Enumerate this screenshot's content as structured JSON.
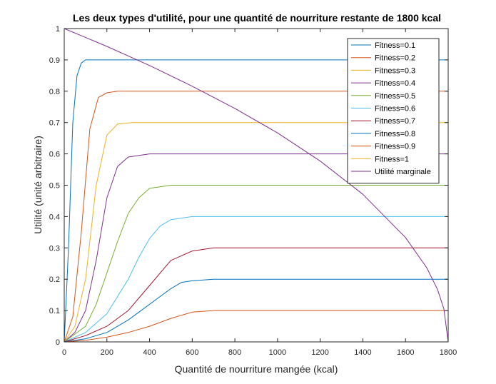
{
  "chart_data": {
    "type": "line",
    "title": "Les deux types d'utilité, pour une quantité de nourriture restante de 1800 kcal",
    "xlabel": "Quantité de nourriture mangée (kcal)",
    "ylabel": "Utilité (unité arbitraire)",
    "xlim": [
      0,
      1800
    ],
    "ylim": [
      0,
      1
    ],
    "xticks": [
      0,
      200,
      400,
      600,
      800,
      1000,
      1200,
      1400,
      1600,
      1800
    ],
    "yticks": [
      0,
      0.1,
      0.2,
      0.3,
      0.4,
      0.5,
      0.6,
      0.7,
      0.8,
      0.9,
      1
    ],
    "grid": false,
    "legend_position": "top-right",
    "series": [
      {
        "name": "Fitness=0.1",
        "color": "#0072bd",
        "plateau": 0.9,
        "x": [
          0,
          20,
          40,
          60,
          80,
          100,
          130,
          1800
        ],
        "y": [
          0,
          0.3,
          0.7,
          0.85,
          0.89,
          0.9,
          0.9,
          0.9
        ]
      },
      {
        "name": "Fitness=0.2",
        "color": "#d95319",
        "plateau": 0.8,
        "x": [
          0,
          40,
          80,
          120,
          160,
          200,
          250,
          1800
        ],
        "y": [
          0,
          0.08,
          0.35,
          0.68,
          0.78,
          0.795,
          0.8,
          0.8
        ]
      },
      {
        "name": "Fitness=0.3",
        "color": "#edb120",
        "plateau": 0.7,
        "x": [
          0,
          50,
          100,
          150,
          200,
          250,
          320,
          1800
        ],
        "y": [
          0,
          0.05,
          0.2,
          0.5,
          0.66,
          0.695,
          0.7,
          0.7
        ]
      },
      {
        "name": "Fitness=0.4",
        "color": "#7e2f8e",
        "plateau": 0.6,
        "x": [
          0,
          50,
          100,
          150,
          200,
          250,
          300,
          400,
          1800
        ],
        "y": [
          0,
          0.03,
          0.1,
          0.26,
          0.46,
          0.56,
          0.59,
          0.6,
          0.6
        ]
      },
      {
        "name": "Fitness=0.5",
        "color": "#77ac30",
        "plateau": 0.5,
        "x": [
          0,
          100,
          150,
          200,
          250,
          300,
          350,
          400,
          500,
          1800
        ],
        "y": [
          0,
          0.05,
          0.12,
          0.22,
          0.32,
          0.41,
          0.46,
          0.49,
          0.5,
          0.5
        ]
      },
      {
        "name": "Fitness=0.6",
        "color": "#4dbeee",
        "plateau": 0.4,
        "x": [
          0,
          100,
          200,
          300,
          350,
          400,
          450,
          500,
          600,
          1800
        ],
        "y": [
          0,
          0.03,
          0.09,
          0.2,
          0.27,
          0.33,
          0.37,
          0.39,
          0.4,
          0.4
        ]
      },
      {
        "name": "Fitness=0.7",
        "color": "#a2142f",
        "plateau": 0.3,
        "x": [
          0,
          100,
          200,
          300,
          400,
          450,
          500,
          600,
          700,
          1800
        ],
        "y": [
          0,
          0.02,
          0.05,
          0.1,
          0.18,
          0.22,
          0.26,
          0.29,
          0.3,
          0.3
        ]
      },
      {
        "name": "Fitness=0.8",
        "color": "#0072bd",
        "plateau": 0.2,
        "x": [
          0,
          100,
          200,
          300,
          400,
          500,
          550,
          600,
          700,
          1800
        ],
        "y": [
          0,
          0.01,
          0.03,
          0.07,
          0.12,
          0.17,
          0.19,
          0.195,
          0.2,
          0.2
        ]
      },
      {
        "name": "Fitness=0.9",
        "color": "#d95319",
        "plateau": 0.1,
        "x": [
          0,
          100,
          200,
          300,
          400,
          500,
          600,
          700,
          1800
        ],
        "y": [
          0,
          0.005,
          0.015,
          0.03,
          0.05,
          0.075,
          0.095,
          0.1,
          0.1
        ]
      },
      {
        "name": "Fitness=1",
        "color": "#edb120",
        "plateau": 0,
        "x": [
          0,
          1800
        ],
        "y": [
          0,
          0
        ]
      },
      {
        "name": "Utilité marginale",
        "color": "#7e2f8e",
        "formula": "y = sqrt(1 - x/1800)",
        "x": [
          0,
          200,
          400,
          600,
          800,
          1000,
          1200,
          1400,
          1600,
          1700,
          1750,
          1780,
          1800
        ],
        "y": [
          1,
          0.943,
          0.882,
          0.816,
          0.745,
          0.667,
          0.577,
          0.471,
          0.333,
          0.236,
          0.167,
          0.105,
          0
        ]
      }
    ]
  }
}
